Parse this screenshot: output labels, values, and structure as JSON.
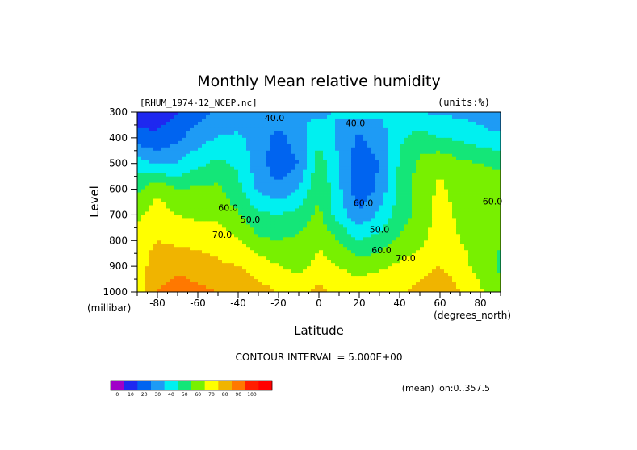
{
  "chart_data": {
    "type": "heatmap",
    "title": "Monthly Mean relative humidity",
    "dataset_label": "[RHUM_1974-12_NCEP.nc]",
    "units_label": "(units:%)",
    "xlabel": "Latitude",
    "ylabel": "Level",
    "x_unit_label": "(degrees_north)",
    "y_unit_label": "(millibar)",
    "x_range": [
      -90,
      90
    ],
    "y_range": [
      1000,
      300
    ],
    "x_ticks": [
      -80,
      -60,
      -40,
      -20,
      0,
      20,
      40,
      60,
      80
    ],
    "x_tick_labels": [
      "-80",
      "-60",
      "-40",
      "-20",
      "0",
      "20",
      "40",
      "60",
      "80"
    ],
    "y_ticks": [
      300,
      400,
      500,
      600,
      700,
      800,
      900,
      1000
    ],
    "y_tick_labels": [
      "300",
      "400",
      "500",
      "600",
      "700",
      "800",
      "900",
      "1000"
    ],
    "contour_interval_label": "CONTOUR INTERVAL = 5.000E+00",
    "averaging_label": "(mean) lon:0..357.5",
    "contour_labels": [
      {
        "text": "40.0",
        "lat": -22,
        "level": 335
      },
      {
        "text": "40.0",
        "lat": 18,
        "level": 355
      },
      {
        "text": "60.0",
        "lat": -45,
        "level": 685
      },
      {
        "text": "50.0",
        "lat": -34,
        "level": 730
      },
      {
        "text": "70.0",
        "lat": -48,
        "level": 790
      },
      {
        "text": "60.0",
        "lat": 22,
        "level": 665
      },
      {
        "text": "50.0",
        "lat": 30,
        "level": 770
      },
      {
        "text": "60.0",
        "lat": 31,
        "level": 850
      },
      {
        "text": "70.0",
        "lat": 43,
        "level": 880
      },
      {
        "text": "60.0",
        "lat": 86,
        "level": 660
      }
    ],
    "levels": [
      300,
      400,
      500,
      600,
      700,
      800,
      900,
      1000
    ],
    "latitudes": [
      -90,
      -80,
      -70,
      -60,
      -50,
      -40,
      -30,
      -20,
      -10,
      0,
      10,
      20,
      30,
      40,
      50,
      60,
      70,
      80,
      90
    ],
    "values": [
      [
        12,
        14,
        20,
        27,
        31,
        32,
        30,
        38,
        40,
        38,
        41,
        45,
        41,
        40,
        40,
        38,
        38,
        36,
        30
      ],
      [
        25,
        22,
        28,
        35,
        41,
        42,
        36,
        26,
        36,
        48,
        37,
        28,
        36,
        48,
        55,
        50,
        48,
        44,
        42
      ],
      [
        45,
        38,
        40,
        48,
        52,
        48,
        34,
        24,
        30,
        55,
        40,
        24,
        30,
        52,
        62,
        68,
        62,
        60,
        58
      ],
      [
        58,
        68,
        60,
        62,
        62,
        53,
        38,
        32,
        40,
        60,
        42,
        22,
        32,
        55,
        64,
        72,
        66,
        66,
        64
      ],
      [
        68,
        75,
        70,
        68,
        68,
        61,
        52,
        50,
        54,
        62,
        45,
        32,
        42,
        55,
        64,
        74,
        68,
        62,
        60
      ],
      [
        75,
        80,
        78,
        76,
        75,
        71,
        62,
        60,
        62,
        68,
        60,
        50,
        54,
        62,
        68,
        74,
        70,
        66,
        60
      ],
      [
        75,
        85,
        88,
        86,
        82,
        80,
        77,
        70,
        66,
        74,
        70,
        64,
        68,
        72,
        75,
        80,
        74,
        66,
        58
      ],
      [
        72,
        90,
        94,
        92,
        90,
        86,
        83,
        80,
        78,
        82,
        78,
        78,
        80,
        78,
        84,
        88,
        80,
        72,
        62
      ]
    ],
    "colorbar": {
      "ticks": [
        0,
        10,
        20,
        30,
        40,
        50,
        60,
        70,
        80,
        90,
        100
      ],
      "tick_labels": [
        "0",
        "10",
        "20",
        "30",
        "40",
        "50",
        "60",
        "70",
        "80",
        "90",
        "100"
      ],
      "colors": [
        "#a000c8",
        "#1e28f0",
        "#0064f0",
        "#1e9bf5",
        "#00f0f0",
        "#14e678",
        "#78f000",
        "#ffff00",
        "#f0b400",
        "#ff7800",
        "#ff1e00",
        "#ff0000"
      ]
    }
  }
}
